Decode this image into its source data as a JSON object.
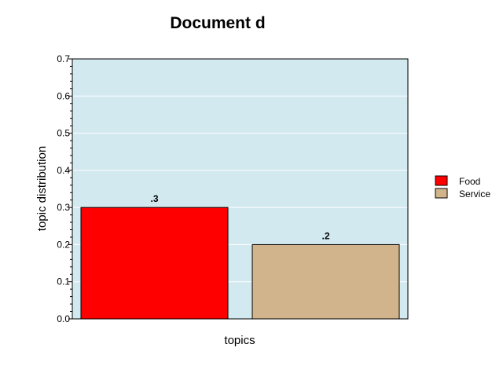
{
  "chart_data": {
    "type": "bar",
    "title": "Document d",
    "xlabel": "topics",
    "ylabel": "topic distribution",
    "ylim": [
      0,
      0.7
    ],
    "yticks": [
      "0.0",
      "0.1",
      "0.2",
      "0.3",
      "0.4",
      "0.5",
      "0.6",
      "0.7"
    ],
    "series": [
      {
        "name": "Food",
        "value": 0.3,
        "label": ".3",
        "color": "#ff0000"
      },
      {
        "name": "Service",
        "value": 0.2,
        "label": ".2",
        "color": "#d2b48c"
      }
    ],
    "plot_background": "#d2e9f0",
    "grid": true,
    "legend": "right"
  }
}
